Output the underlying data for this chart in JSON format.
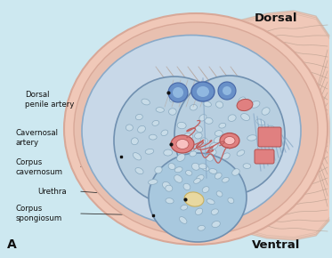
{
  "background_color": "#cde8f0",
  "title_dorsal": "Dorsal",
  "title_ventral": "Ventral",
  "label_A": "A",
  "labels": {
    "dorsal_penile_artery": "Dorsal\npenile artery",
    "cavernosal_artery": "Cavernosal\nartery",
    "corpus_cavernosum": "Corpus\ncavernosum",
    "urethra": "Urethra",
    "corpus_spongiosum": "Corpus\nspongiosum"
  },
  "colors": {
    "background": "#cde8f0",
    "outer_skin": "#f0c8b8",
    "outer_skin_stroke": "#d8a898",
    "shaft_inner": "#e8c0b0",
    "tunica": "#e0b8c8",
    "corpus_fill": "#b8cfe0",
    "corpus_stroke": "#7090b0",
    "spongy_fill": "#a8c8de",
    "artery_pink": "#e08080",
    "artery_inner": "#f8c0c0",
    "artery_stroke": "#b05050",
    "vein_blue": "#6890c8",
    "vein_inner": "#90b8e0",
    "urethra_fill": "#e8d8a0",
    "urethra_stroke": "#c8b060",
    "sinusoid_fill": "#c8dce8",
    "sinusoid_stroke": "#8aaac0",
    "dot_color": "#111111",
    "text_color": "#111111",
    "line_color": "#333333",
    "muscle_line": "#b09888",
    "fascia_line": "#c0a898",
    "helicine": "#c06060",
    "septum": "#8aaac8"
  },
  "figsize": [
    3.73,
    2.9
  ],
  "dpi": 100
}
